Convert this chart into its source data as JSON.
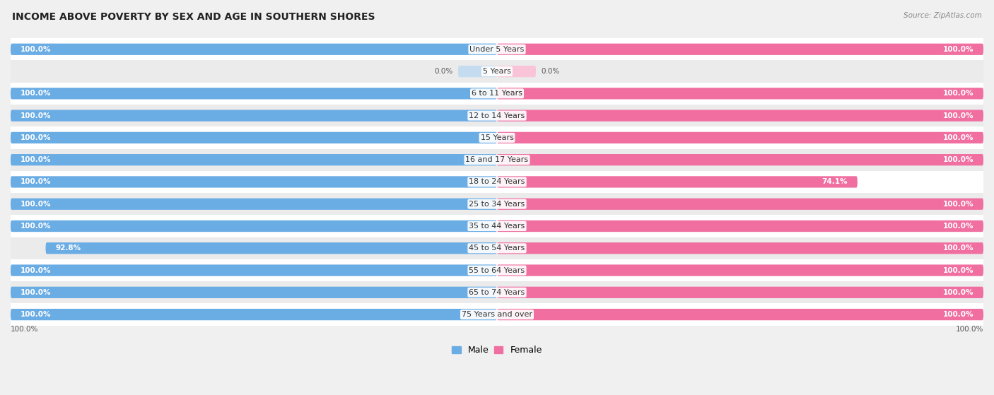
{
  "title": "INCOME ABOVE POVERTY BY SEX AND AGE IN SOUTHERN SHORES",
  "source": "Source: ZipAtlas.com",
  "categories": [
    "Under 5 Years",
    "5 Years",
    "6 to 11 Years",
    "12 to 14 Years",
    "15 Years",
    "16 and 17 Years",
    "18 to 24 Years",
    "25 to 34 Years",
    "35 to 44 Years",
    "45 to 54 Years",
    "55 to 64 Years",
    "65 to 74 Years",
    "75 Years and over"
  ],
  "male_values": [
    100.0,
    0.0,
    100.0,
    100.0,
    100.0,
    100.0,
    100.0,
    100.0,
    100.0,
    92.8,
    100.0,
    100.0,
    100.0
  ],
  "female_values": [
    100.0,
    0.0,
    100.0,
    100.0,
    100.0,
    100.0,
    74.1,
    100.0,
    100.0,
    100.0,
    100.0,
    100.0,
    100.0
  ],
  "male_color": "#6aace4",
  "female_color": "#f06fa0",
  "male_color_light": "#c5dcf0",
  "female_color_light": "#f9c4d8",
  "row_color_odd": "#f2f2f2",
  "row_color_even": "#e8e8e8",
  "bg_color": "#f0f0f0",
  "title_fontsize": 10,
  "label_fontsize": 8,
  "value_fontsize": 7.5,
  "bar_height": 0.62,
  "max_value": 100.0,
  "value_color_inside": "white",
  "value_color_outside": "#555555"
}
